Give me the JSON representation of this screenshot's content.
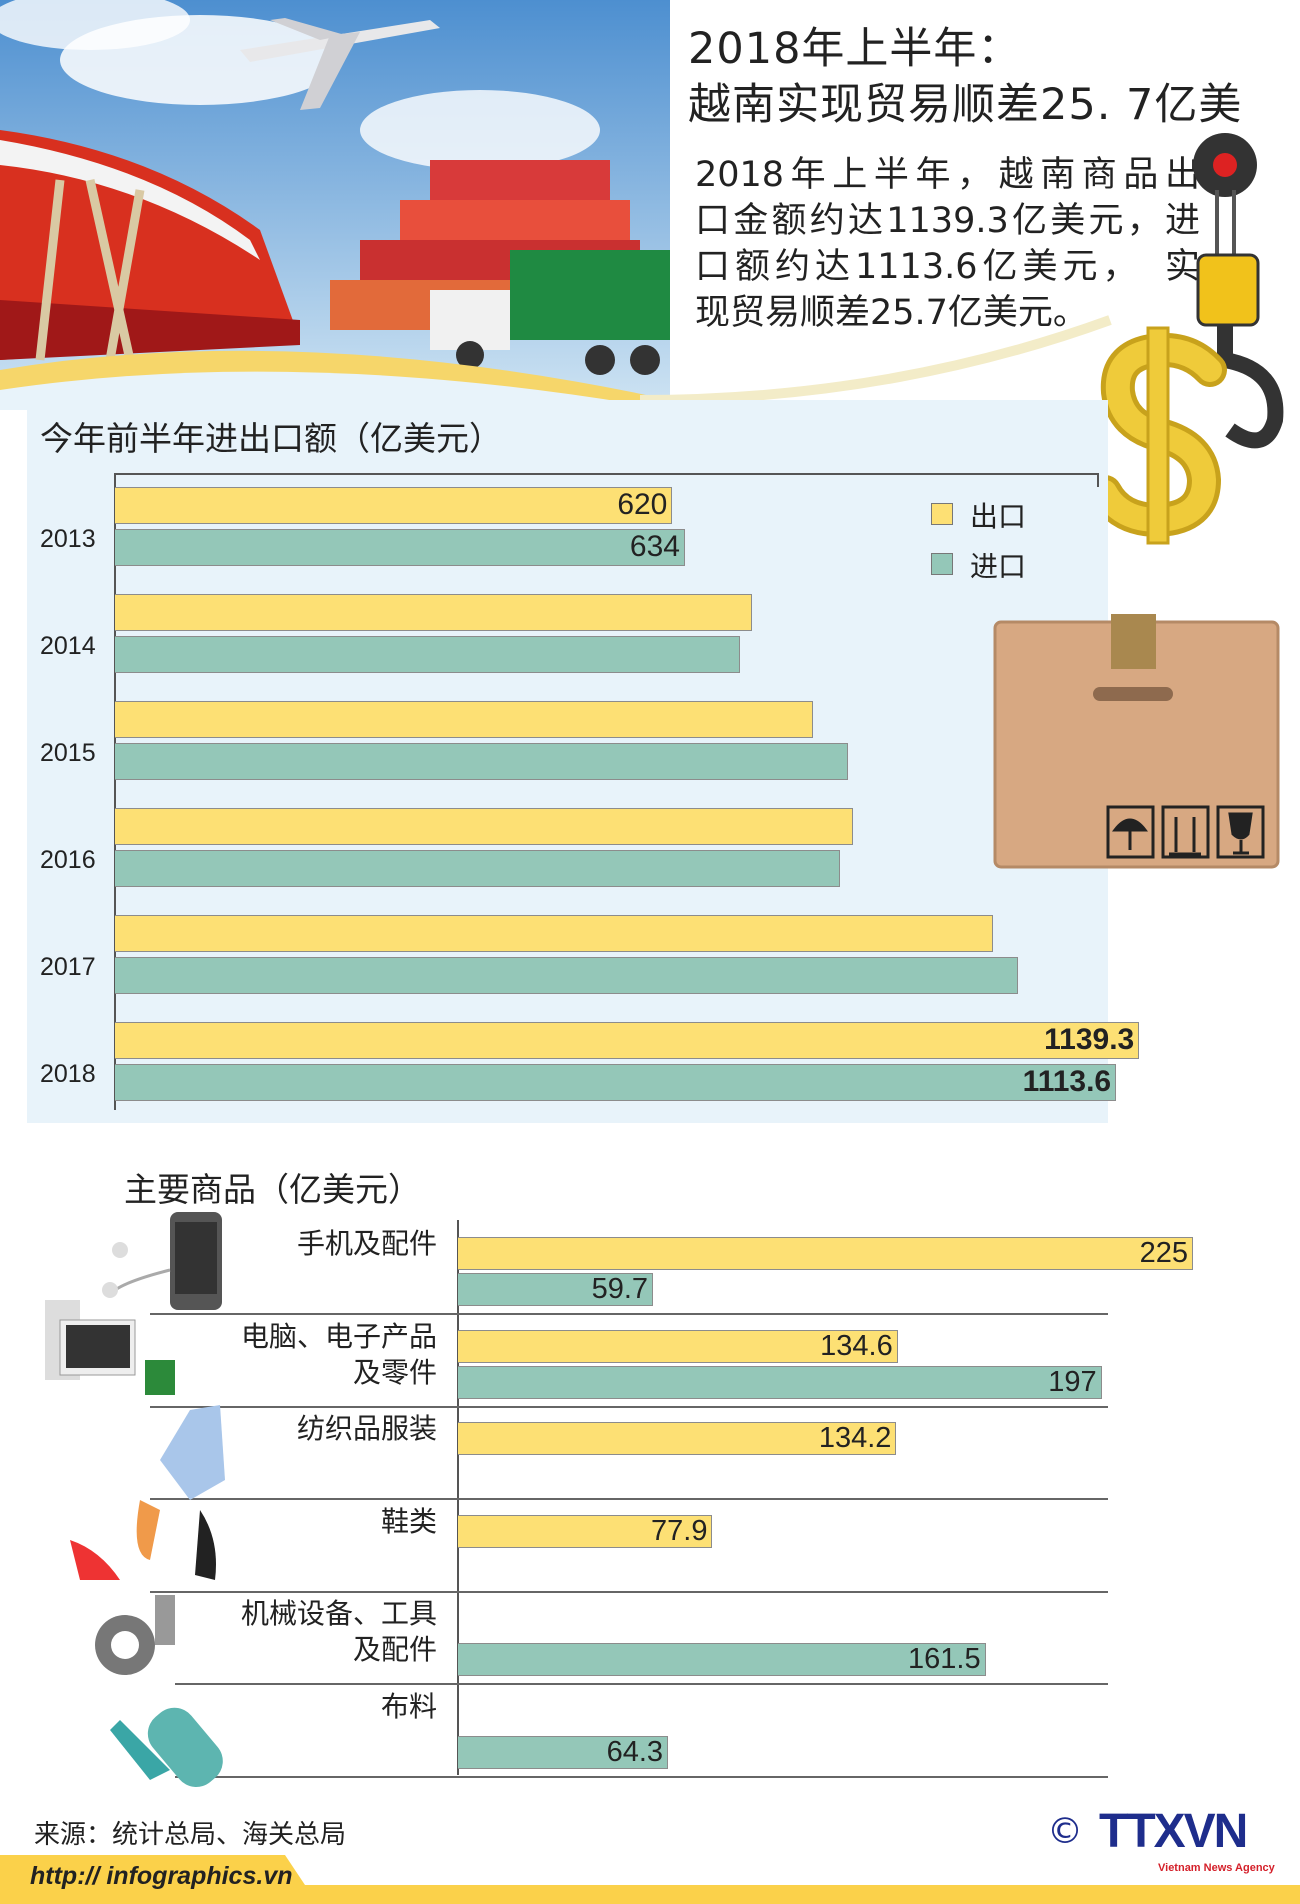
{
  "header": {
    "title_line1": "2018年上半年：",
    "title_line2": "越南实现贸易顺差25. 7亿美",
    "paragraph_lines": [
      "2018年上半年，越南商品出",
      "口金额约达1139.3亿美元，进",
      "口额约达1113.6亿美元，　实",
      "现贸易顺差25.7亿美元。"
    ]
  },
  "colors": {
    "export": "#fde074",
    "import": "#94c7b8",
    "background_panel": "#e8f3fa"
  },
  "legend": {
    "export": "出口",
    "import": "进口"
  },
  "chart_data": [
    {
      "type": "bar",
      "orientation": "horizontal",
      "title": "今年前半年进出口额（亿美元）",
      "categories": [
        "2013",
        "2014",
        "2015",
        "2016",
        "2017",
        "2018"
      ],
      "series": [
        {
          "name": "出口",
          "values": [
            620,
            709,
            776,
            821,
            977,
            1139.3
          ],
          "labels": [
            "620",
            "",
            "",
            "",
            "",
            "1139.3"
          ]
        },
        {
          "name": "进口",
          "values": [
            634,
            695,
            815,
            806,
            1004,
            1113.6
          ],
          "labels": [
            "634",
            "",
            "",
            "",
            "",
            "1113.6"
          ]
        }
      ],
      "xlim": [
        0,
        1150
      ],
      "grid": false,
      "legend_position": "top-right"
    },
    {
      "type": "bar",
      "orientation": "horizontal",
      "title": "主要商品（亿美元）",
      "categories": [
        [
          "手机及配件"
        ],
        [
          "电脑、电子产品",
          "及零件"
        ],
        [
          "纺织品服装"
        ],
        [
          "鞋类"
        ],
        [
          "机械设备、工具",
          "及配件"
        ],
        [
          "布料"
        ]
      ],
      "series": [
        {
          "name": "出口",
          "values": [
            225,
            134.6,
            134.2,
            77.9,
            null,
            null
          ],
          "labels": [
            "225",
            "134.6",
            "134.2",
            "77.9",
            "",
            ""
          ]
        },
        {
          "name": "进口",
          "values": [
            59.7,
            197,
            null,
            null,
            161.5,
            64.3
          ],
          "labels": [
            "59.7",
            "197",
            "",
            "",
            "161.5",
            "64.3"
          ]
        }
      ],
      "xlim": [
        0,
        225
      ],
      "grid": false
    }
  ],
  "footer": {
    "source": "来源：统计总局、海关总局",
    "url": "http:// infographics.vn",
    "logo_text": "TTXVN",
    "logo_sub": "Vietnam News Agency",
    "copyright": "©"
  }
}
